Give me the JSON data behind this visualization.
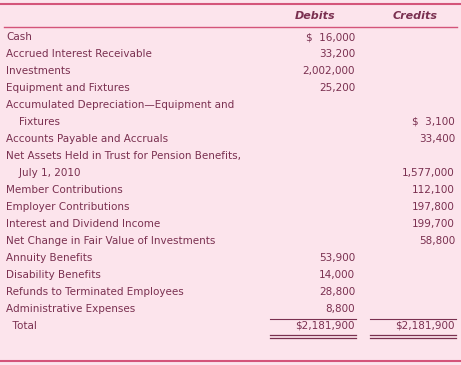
{
  "background_color": "#fce4ec",
  "outer_border_color": "#d4547a",
  "header_line_color": "#d4547a",
  "text_color": "#7a3050",
  "rows": [
    {
      "label": "Cash",
      "debit": "$  16,000",
      "credit": ""
    },
    {
      "label": "Accrued Interest Receivable",
      "debit": "33,200",
      "credit": ""
    },
    {
      "label": "Investments",
      "debit": "2,002,000",
      "credit": ""
    },
    {
      "label": "Equipment and Fixtures",
      "debit": "25,200",
      "credit": ""
    },
    {
      "label": "Accumulated Depreciation—Equipment and",
      "debit": "",
      "credit": ""
    },
    {
      "label": "    Fixtures",
      "debit": "",
      "credit": "$  3,100"
    },
    {
      "label": "Accounts Payable and Accruals",
      "debit": "",
      "credit": "33,400"
    },
    {
      "label": "Net Assets Held in Trust for Pension Benefits,",
      "debit": "",
      "credit": ""
    },
    {
      "label": "    July 1, 2010",
      "debit": "",
      "credit": "1,577,000"
    },
    {
      "label": "Member Contributions",
      "debit": "",
      "credit": "112,100"
    },
    {
      "label": "Employer Contributions",
      "debit": "",
      "credit": "197,800"
    },
    {
      "label": "Interest and Dividend Income",
      "debit": "",
      "credit": "199,700"
    },
    {
      "label": "Net Change in Fair Value of Investments",
      "debit": "",
      "credit": "58,800"
    },
    {
      "label": "Annuity Benefits",
      "debit": "53,900",
      "credit": ""
    },
    {
      "label": "Disability Benefits",
      "debit": "14,000",
      "credit": ""
    },
    {
      "label": "Refunds to Terminated Employees",
      "debit": "28,800",
      "credit": ""
    },
    {
      "label": "Administrative Expenses",
      "debit": "8,800",
      "credit": "",
      "underline": true
    },
    {
      "label": "  Total",
      "debit": "$2,181,900",
      "credit": "$2,181,900",
      "is_total": true
    }
  ]
}
